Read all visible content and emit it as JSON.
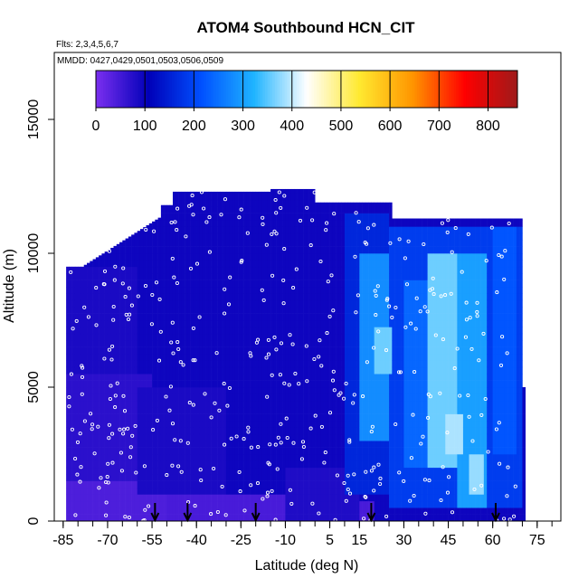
{
  "chart_data": {
    "type": "heatmap",
    "title": "ATOM4 Southbound HCN_CIT",
    "subtitle": "Flts: 2,3,4,5,6,7",
    "annotation": "MMDD: 0427,0429,0501,0503,0506,0509",
    "xlabel": "Latitude (deg N)",
    "ylabel": "Altitude (m)",
    "xlim": [
      -88,
      83
    ],
    "ylim": [
      0,
      17500
    ],
    "x_ticks": [
      -85,
      -70,
      -55,
      -40,
      -25,
      -10,
      5,
      15,
      30,
      45,
      60,
      75
    ],
    "x_minor_ticks": [
      -85,
      -80,
      -75,
      -70,
      -65,
      -60,
      -55,
      -50,
      -45,
      -40,
      -35,
      -30,
      -25,
      -20,
      -15,
      -10,
      -5,
      0,
      5,
      10,
      15,
      20,
      25,
      30,
      35,
      40,
      45,
      50,
      55,
      60,
      65,
      70,
      75,
      80
    ],
    "y_ticks": [
      0,
      5000,
      10000,
      15000
    ],
    "colorbar": {
      "range": [
        0,
        860
      ],
      "ticks": [
        0,
        100,
        200,
        300,
        400,
        500,
        600,
        700,
        800
      ],
      "colors": [
        "#7b2ff0",
        "#0000b8",
        "#0050ff",
        "#1fb4ff",
        "#ffffff",
        "#ffe930",
        "#ff9600",
        "#ff0000",
        "#9e1a1a"
      ]
    },
    "background_value": 95,
    "profile_markers_latitude": [
      -54,
      -43,
      -20,
      19,
      61
    ],
    "regions": [
      {
        "lat": [
          -84,
          -50
        ],
        "alt": [
          0,
          1500
        ],
        "value": 40
      },
      {
        "lat": [
          -50,
          -5
        ],
        "alt": [
          0,
          1000
        ],
        "value": 45
      },
      {
        "lat": [
          -5,
          20
        ],
        "alt": [
          0,
          700
        ],
        "value": 45
      },
      {
        "lat": [
          -84,
          -55
        ],
        "alt": [
          1500,
          5500
        ],
        "value": 70
      },
      {
        "lat": [
          -84,
          -60
        ],
        "alt": [
          5500,
          9500
        ],
        "value": 85
      },
      {
        "lat": [
          -60,
          -30
        ],
        "alt": [
          1000,
          5000
        ],
        "value": 85
      },
      {
        "lat": [
          -10,
          15
        ],
        "alt": [
          0,
          2000
        ],
        "value": 80
      },
      {
        "lat": [
          10,
          25
        ],
        "alt": [
          1000,
          11500
        ],
        "value": 160
      },
      {
        "lat": [
          15,
          28
        ],
        "alt": [
          3000,
          10000
        ],
        "value": 280
      },
      {
        "lat": [
          25,
          70
        ],
        "alt": [
          500,
          11000
        ],
        "value": 190
      },
      {
        "lat": [
          30,
          45
        ],
        "alt": [
          2000,
          9000
        ],
        "value": 240
      },
      {
        "lat": [
          38,
          52
        ],
        "alt": [
          2000,
          10000
        ],
        "value": 360
      },
      {
        "lat": [
          48,
          58
        ],
        "alt": [
          500,
          10000
        ],
        "value": 300
      },
      {
        "lat": [
          20,
          26
        ],
        "alt": [
          5500,
          7200
        ],
        "value": 360
      },
      {
        "lat": [
          44,
          50
        ],
        "alt": [
          2500,
          4000
        ],
        "value": 390
      },
      {
        "lat": [
          52,
          57
        ],
        "alt": [
          800,
          2500
        ],
        "value": 380
      },
      {
        "lat": [
          60,
          68
        ],
        "alt": [
          2500,
          11000
        ],
        "value": 220
      }
    ]
  }
}
